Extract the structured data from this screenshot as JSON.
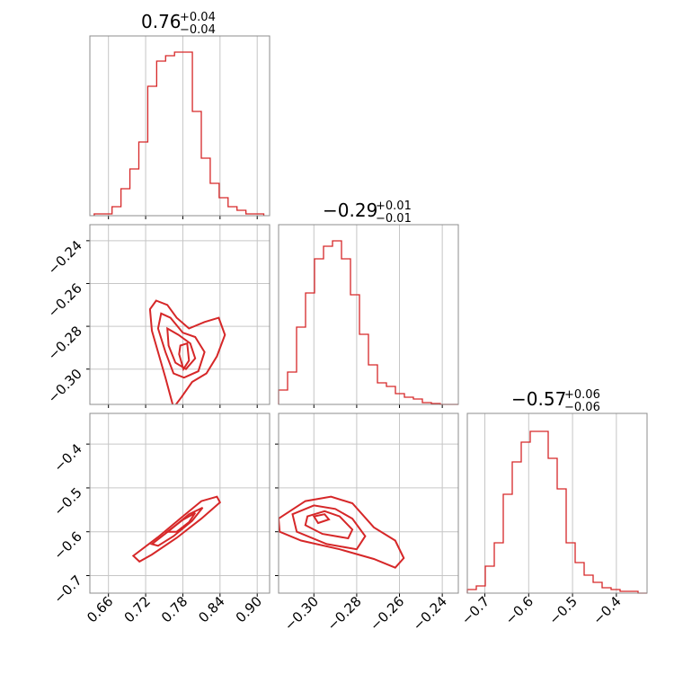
{
  "colors": {
    "primary": "#d62728",
    "fill": "#d62728",
    "grid": "#c6c6c6",
    "frame": "#8c8c8c"
  },
  "chart_data": {
    "type": "corner",
    "titles": [
      {
        "value": "0.76",
        "plus": "+0.04",
        "minus": "−0.04"
      },
      {
        "value": "−0.29",
        "plus": "+0.01",
        "minus": "−0.01"
      },
      {
        "value": "−0.57",
        "plus": "+0.06",
        "minus": "−0.06"
      }
    ],
    "parameters": [
      {
        "range": [
          0.63,
          0.92
        ],
        "ticks": [
          0.66,
          0.72,
          0.78,
          0.84,
          0.9
        ],
        "tick_labels": [
          "0.66",
          "0.72",
          "0.78",
          "0.84",
          "0.90"
        ]
      },
      {
        "range": [
          -0.3165,
          -0.2325
        ],
        "ticks": [
          -0.3,
          -0.28,
          -0.26,
          -0.24
        ],
        "tick_labels": [
          "−0.30",
          "−0.28",
          "−0.26",
          "−0.24"
        ]
      },
      {
        "range": [
          -0.74,
          -0.33
        ],
        "ticks": [
          -0.7,
          -0.6,
          -0.5,
          -0.4
        ],
        "tick_labels": [
          "−0.7",
          "−0.6",
          "−0.5",
          "−0.4"
        ]
      }
    ],
    "histograms": [
      {
        "param": 0,
        "bin_start": 0.637,
        "bin_width": 0.0144,
        "counts": [
          0.01,
          0.01,
          0.05,
          0.15,
          0.26,
          0.41,
          0.72,
          0.86,
          0.89,
          0.91,
          0.91,
          0.58,
          0.32,
          0.18,
          0.1,
          0.05,
          0.03,
          0.01,
          0.01
        ]
      },
      {
        "param": 1,
        "bin_start": -0.3165,
        "bin_width": 0.0042,
        "counts": [
          0.08,
          0.18,
          0.43,
          0.62,
          0.81,
          0.88,
          0.91,
          0.81,
          0.61,
          0.39,
          0.22,
          0.12,
          0.1,
          0.06,
          0.04,
          0.03,
          0.01,
          0.005,
          0.0,
          0.0
        ]
      },
      {
        "param": 2,
        "bin_start": -0.74,
        "bin_width": 0.0205,
        "counts": [
          0.02,
          0.04,
          0.15,
          0.28,
          0.55,
          0.73,
          0.84,
          0.9,
          0.9,
          0.75,
          0.58,
          0.28,
          0.17,
          0.1,
          0.06,
          0.03,
          0.02,
          0.01,
          0.01,
          0.0
        ]
      }
    ],
    "contour_panels": [
      {
        "x_param": 0,
        "y_param": 1,
        "levels": [
          [
            [
              0.737,
              -0.268
            ],
            [
              0.755,
              -0.27
            ],
            [
              0.77,
              -0.276
            ],
            [
              0.79,
              -0.281
            ],
            [
              0.815,
              -0.278
            ],
            [
              0.838,
              -0.276
            ],
            [
              0.848,
              -0.284
            ],
            [
              0.835,
              -0.294
            ],
            [
              0.818,
              -0.302
            ],
            [
              0.795,
              -0.306
            ],
            [
              0.778,
              -0.313
            ],
            [
              0.765,
              -0.318
            ],
            [
              0.752,
              -0.304
            ],
            [
              0.742,
              -0.294
            ],
            [
              0.73,
              -0.282
            ],
            [
              0.727,
              -0.272
            ]
          ],
          [
            [
              0.745,
              -0.274
            ],
            [
              0.76,
              -0.276
            ],
            [
              0.78,
              -0.283
            ],
            [
              0.8,
              -0.285
            ],
            [
              0.815,
              -0.292
            ],
            [
              0.805,
              -0.301
            ],
            [
              0.782,
              -0.304
            ],
            [
              0.765,
              -0.302
            ],
            [
              0.752,
              -0.292
            ],
            [
              0.74,
              -0.281
            ]
          ],
          [
            [
              0.755,
              -0.281
            ],
            [
              0.773,
              -0.284
            ],
            [
              0.792,
              -0.288
            ],
            [
              0.8,
              -0.295
            ],
            [
              0.785,
              -0.3
            ],
            [
              0.768,
              -0.297
            ],
            [
              0.757,
              -0.289
            ]
          ],
          [
            [
              0.776,
              -0.289
            ],
            [
              0.787,
              -0.288
            ],
            [
              0.79,
              -0.296
            ],
            [
              0.781,
              -0.3
            ],
            [
              0.774,
              -0.293
            ]
          ]
        ]
      },
      {
        "x_param": 0,
        "y_param": 2,
        "levels": [
          [
            [
              0.7,
              -0.655
            ],
            [
              0.74,
              -0.612
            ],
            [
              0.78,
              -0.565
            ],
            [
              0.81,
              -0.53
            ],
            [
              0.835,
              -0.52
            ],
            [
              0.84,
              -0.533
            ],
            [
              0.81,
              -0.57
            ],
            [
              0.77,
              -0.614
            ],
            [
              0.73,
              -0.652
            ],
            [
              0.71,
              -0.668
            ]
          ],
          [
            [
              0.73,
              -0.628
            ],
            [
              0.76,
              -0.595
            ],
            [
              0.79,
              -0.56
            ],
            [
              0.812,
              -0.545
            ],
            [
              0.795,
              -0.575
            ],
            [
              0.765,
              -0.61
            ],
            [
              0.74,
              -0.632
            ]
          ],
          [
            [
              0.755,
              -0.6
            ],
            [
              0.78,
              -0.573
            ],
            [
              0.8,
              -0.557
            ],
            [
              0.79,
              -0.578
            ],
            [
              0.77,
              -0.6
            ]
          ]
        ]
      },
      {
        "x_param": 1,
        "y_param": 2,
        "levels": [
          [
            [
              -0.3165,
              -0.57
            ],
            [
              -0.304,
              -0.53
            ],
            [
              -0.292,
              -0.52
            ],
            [
              -0.282,
              -0.535
            ],
            [
              -0.272,
              -0.59
            ],
            [
              -0.262,
              -0.62
            ],
            [
              -0.258,
              -0.66
            ],
            [
              -0.262,
              -0.682
            ],
            [
              -0.272,
              -0.662
            ],
            [
              -0.288,
              -0.64
            ],
            [
              -0.306,
              -0.62
            ],
            [
              -0.316,
              -0.6
            ]
          ],
          [
            [
              -0.31,
              -0.56
            ],
            [
              -0.3,
              -0.54
            ],
            [
              -0.29,
              -0.548
            ],
            [
              -0.282,
              -0.57
            ],
            [
              -0.276,
              -0.61
            ],
            [
              -0.28,
              -0.64
            ],
            [
              -0.294,
              -0.628
            ],
            [
              -0.308,
              -0.6
            ]
          ],
          [
            [
              -0.303,
              -0.565
            ],
            [
              -0.295,
              -0.553
            ],
            [
              -0.288,
              -0.565
            ],
            [
              -0.282,
              -0.595
            ],
            [
              -0.284,
              -0.615
            ],
            [
              -0.296,
              -0.605
            ],
            [
              -0.304,
              -0.585
            ]
          ],
          [
            [
              -0.3,
              -0.565
            ],
            [
              -0.295,
              -0.56
            ],
            [
              -0.293,
              -0.572
            ],
            [
              -0.298,
              -0.58
            ]
          ]
        ]
      }
    ]
  }
}
